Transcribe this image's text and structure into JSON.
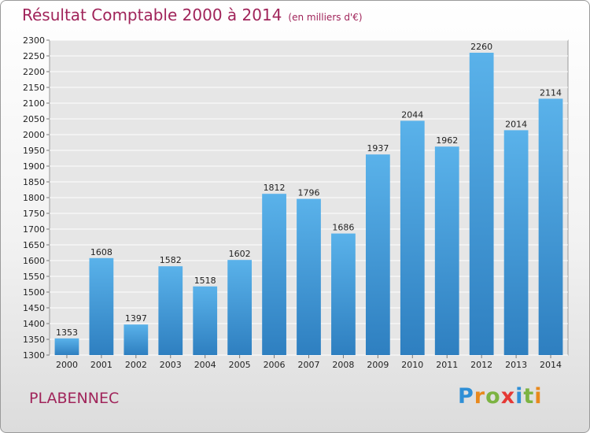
{
  "chart_data": {
    "type": "bar",
    "title": "Résultat Comptable 2000 à 2014",
    "unit": "(en milliers d'€)",
    "categories": [
      "2000",
      "2001",
      "2002",
      "2003",
      "2004",
      "2005",
      "2006",
      "2007",
      "2008",
      "2009",
      "2010",
      "2011",
      "2012",
      "2013",
      "2014"
    ],
    "values": [
      1353,
      1608,
      1397,
      1582,
      1518,
      1602,
      1812,
      1796,
      1686,
      1937,
      2044,
      1962,
      2260,
      2014,
      2114
    ],
    "ylim": [
      1300,
      2300
    ],
    "yticks": [
      1300,
      1350,
      1400,
      1450,
      1500,
      1550,
      1600,
      1650,
      1700,
      1750,
      1800,
      1850,
      1900,
      1950,
      2000,
      2050,
      2100,
      2150,
      2200,
      2250,
      2300
    ],
    "grid": true,
    "bar_color": "#4aa3e0"
  },
  "town": "PLABENNEC",
  "brand": {
    "letters": [
      "P",
      "r",
      "o",
      "x",
      "i",
      "t",
      "i"
    ],
    "colors": [
      "#2f8fd6",
      "#e8891d",
      "#7cb342",
      "#e53935",
      "#2f8fd6",
      "#7cb342",
      "#e8891d"
    ]
  }
}
